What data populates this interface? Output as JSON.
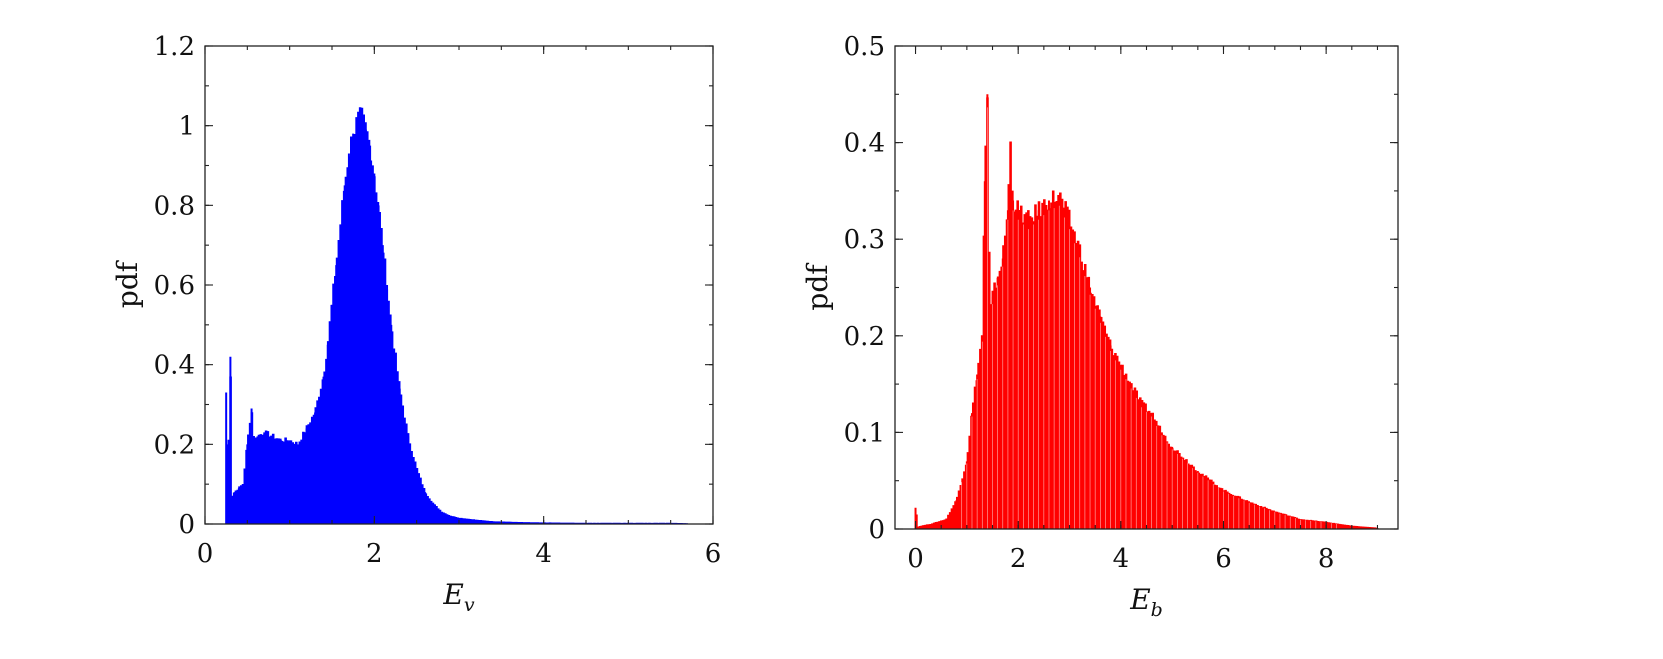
{
  "chart_data": [
    {
      "type": "bar",
      "xlabel": "E",
      "xlabel_sub": "v",
      "ylabel": "pdf",
      "xlim": [
        0,
        6
      ],
      "ylim": [
        0,
        1.2
      ],
      "xticks": [
        "0",
        "2",
        "4",
        "6"
      ],
      "yticks": [
        "0",
        "0.2",
        "0.4",
        "0.6",
        "0.8",
        "1",
        "1.2"
      ],
      "color": "#0000ff",
      "x": [
        0.25,
        0.27,
        0.3,
        0.32,
        0.35,
        0.4,
        0.45,
        0.5,
        0.55,
        0.58,
        0.62,
        0.7,
        0.8,
        0.9,
        1.0,
        1.1,
        1.2,
        1.3,
        1.4,
        1.45,
        1.5,
        1.55,
        1.6,
        1.65,
        1.7,
        1.75,
        1.8,
        1.85,
        1.9,
        1.95,
        2.0,
        2.05,
        2.1,
        2.15,
        2.2,
        2.3,
        2.4,
        2.5,
        2.6,
        2.7,
        2.8,
        2.9,
        3.0,
        3.2,
        3.4,
        3.7,
        4.0,
        4.5,
        5.0,
        5.5,
        5.7
      ],
      "values": [
        0.33,
        0.08,
        0.42,
        0.07,
        0.08,
        0.09,
        0.1,
        0.2,
        0.29,
        0.21,
        0.22,
        0.23,
        0.22,
        0.21,
        0.21,
        0.2,
        0.24,
        0.28,
        0.37,
        0.45,
        0.55,
        0.65,
        0.75,
        0.85,
        0.93,
        0.98,
        1.01,
        1.02,
        0.99,
        0.95,
        0.88,
        0.8,
        0.7,
        0.6,
        0.5,
        0.34,
        0.22,
        0.14,
        0.08,
        0.05,
        0.03,
        0.02,
        0.015,
        0.01,
        0.006,
        0.004,
        0.003,
        0.002,
        0.002,
        0.002,
        0.001
      ]
    },
    {
      "type": "bar",
      "xlabel": "E",
      "xlabel_sub": "b",
      "ylabel": "pdf",
      "xlim": [
        -0.4,
        9.4
      ],
      "ylim": [
        0,
        0.5
      ],
      "xticks": [
        "0",
        "2",
        "4",
        "6",
        "8"
      ],
      "yticks": [
        "0",
        "0.1",
        "0.2",
        "0.3",
        "0.4",
        "0.5"
      ],
      "color": "#ff0000",
      "x": [
        0.0,
        0.05,
        0.1,
        0.3,
        0.6,
        0.8,
        1.0,
        1.1,
        1.2,
        1.3,
        1.35,
        1.4,
        1.45,
        1.5,
        1.6,
        1.7,
        1.8,
        1.85,
        1.9,
        2.0,
        2.2,
        2.4,
        2.6,
        2.8,
        3.0,
        3.2,
        3.4,
        3.6,
        3.8,
        4.0,
        4.2,
        4.4,
        4.6,
        4.8,
        5.0,
        5.5,
        6.0,
        6.5,
        7.0,
        7.5,
        8.0,
        8.5,
        9.0
      ],
      "values": [
        0.022,
        0.002,
        0.003,
        0.005,
        0.01,
        0.03,
        0.07,
        0.12,
        0.16,
        0.2,
        0.36,
        0.45,
        0.22,
        0.24,
        0.26,
        0.28,
        0.33,
        0.4,
        0.34,
        0.33,
        0.32,
        0.33,
        0.34,
        0.345,
        0.32,
        0.29,
        0.25,
        0.22,
        0.19,
        0.17,
        0.15,
        0.13,
        0.12,
        0.1,
        0.085,
        0.06,
        0.04,
        0.028,
        0.018,
        0.01,
        0.007,
        0.003,
        0.001
      ]
    }
  ]
}
